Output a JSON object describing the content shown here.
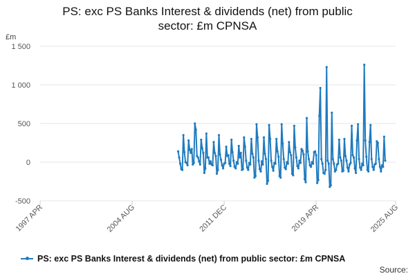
{
  "chart_data": {
    "type": "line",
    "title_lines": [
      "PS: exc PS Banks Interest & dividends (net) from public",
      "sector: £m CPNSA"
    ],
    "unit_label": "£m",
    "ylim": [
      -500,
      1500
    ],
    "y_ticks": [
      -500,
      0,
      500,
      1000,
      1500
    ],
    "y_tick_labels": [
      "-500",
      "0",
      "500",
      "1 000",
      "1 500"
    ],
    "xlim": [
      "1997-04",
      "2025-08"
    ],
    "x_ticks": [
      "1997-04",
      "2004-08",
      "2011-12",
      "2019-04",
      "2025-08"
    ],
    "x_tick_labels": [
      "1997 APR",
      "2004 AUG",
      "2011 DEC",
      "2019 APR",
      "2025 AUG"
    ],
    "grid": true,
    "legend_position": "bottom",
    "series": [
      {
        "name": "PS: exc PS Banks Interest & dividends (net) from public sector: £m CPNSA",
        "color": "#1f7bbf",
        "points": [
          [
            "2008-04",
            140
          ],
          [
            "2008-05",
            60
          ],
          [
            "2008-06",
            -20
          ],
          [
            "2008-07",
            -90
          ],
          [
            "2008-08",
            -100
          ],
          [
            "2008-09",
            350
          ],
          [
            "2008-10",
            130
          ],
          [
            "2008-11",
            0
          ],
          [
            "2008-12",
            -10
          ],
          [
            "2009-01",
            -40
          ],
          [
            "2009-02",
            280
          ],
          [
            "2009-03",
            160
          ],
          [
            "2009-04",
            120
          ],
          [
            "2009-05",
            170
          ],
          [
            "2009-06",
            -30
          ],
          [
            "2009-07",
            -10
          ],
          [
            "2009-08",
            500
          ],
          [
            "2009-09",
            420
          ],
          [
            "2009-10",
            80
          ],
          [
            "2009-11",
            60
          ],
          [
            "2009-12",
            10
          ],
          [
            "2010-01",
            -30
          ],
          [
            "2010-02",
            290
          ],
          [
            "2010-03",
            180
          ],
          [
            "2010-04",
            120
          ],
          [
            "2010-05",
            -140
          ],
          [
            "2010-06",
            -80
          ],
          [
            "2010-07",
            370
          ],
          [
            "2010-08",
            60
          ],
          [
            "2010-09",
            60
          ],
          [
            "2010-10",
            -20
          ],
          [
            "2010-11",
            10
          ],
          [
            "2010-12",
            -30
          ],
          [
            "2011-01",
            -40
          ],
          [
            "2011-02",
            260
          ],
          [
            "2011-03",
            120
          ],
          [
            "2011-04",
            80
          ],
          [
            "2011-05",
            -150
          ],
          [
            "2011-06",
            -100
          ],
          [
            "2011-07",
            350
          ],
          [
            "2011-08",
            100
          ],
          [
            "2011-09",
            30
          ],
          [
            "2011-10",
            -40
          ],
          [
            "2011-11",
            -80
          ],
          [
            "2011-12",
            -20
          ],
          [
            "2012-01",
            -10
          ],
          [
            "2012-02",
            200
          ],
          [
            "2012-03",
            80
          ],
          [
            "2012-04",
            90
          ],
          [
            "2012-05",
            -20
          ],
          [
            "2012-06",
            -50
          ],
          [
            "2012-07",
            290
          ],
          [
            "2012-08",
            130
          ],
          [
            "2012-09",
            20
          ],
          [
            "2012-10",
            -60
          ],
          [
            "2012-11",
            -80
          ],
          [
            "2012-12",
            0
          ],
          [
            "2013-01",
            -20
          ],
          [
            "2013-02",
            210
          ],
          [
            "2013-03",
            60
          ],
          [
            "2013-04",
            120
          ],
          [
            "2013-05",
            -100
          ],
          [
            "2013-06",
            -90
          ],
          [
            "2013-07",
            320
          ],
          [
            "2013-08",
            200
          ],
          [
            "2013-09",
            20
          ],
          [
            "2013-10",
            -70
          ],
          [
            "2013-11",
            -100
          ],
          [
            "2013-12",
            -10
          ],
          [
            "2014-01",
            -30
          ],
          [
            "2014-02",
            300
          ],
          [
            "2014-03",
            110
          ],
          [
            "2014-04",
            60
          ],
          [
            "2014-05",
            -200
          ],
          [
            "2014-06",
            -180
          ],
          [
            "2014-07",
            490
          ],
          [
            "2014-08",
            320
          ],
          [
            "2014-09",
            20
          ],
          [
            "2014-10",
            -90
          ],
          [
            "2014-11",
            -120
          ],
          [
            "2014-12",
            10
          ],
          [
            "2015-01",
            -30
          ],
          [
            "2015-02",
            320
          ],
          [
            "2015-03",
            110
          ],
          [
            "2015-04",
            40
          ],
          [
            "2015-05",
            -280
          ],
          [
            "2015-06",
            -240
          ],
          [
            "2015-07",
            480
          ],
          [
            "2015-08",
            300
          ],
          [
            "2015-09",
            20
          ],
          [
            "2015-10",
            -60
          ],
          [
            "2015-11",
            -110
          ],
          [
            "2015-12",
            -10
          ],
          [
            "2016-01",
            -20
          ],
          [
            "2016-02",
            300
          ],
          [
            "2016-03",
            140
          ],
          [
            "2016-04",
            70
          ],
          [
            "2016-05",
            -180
          ],
          [
            "2016-06",
            -200
          ],
          [
            "2016-07",
            490
          ],
          [
            "2016-08",
            240
          ],
          [
            "2016-09",
            40
          ],
          [
            "2016-10",
            -70
          ],
          [
            "2016-11",
            -90
          ],
          [
            "2016-12",
            0
          ],
          [
            "2017-01",
            -20
          ],
          [
            "2017-02",
            260
          ],
          [
            "2017-03",
            130
          ],
          [
            "2017-04",
            90
          ],
          [
            "2017-05",
            -150
          ],
          [
            "2017-06",
            -170
          ],
          [
            "2017-07",
            470
          ],
          [
            "2017-08",
            190
          ],
          [
            "2017-09",
            60
          ],
          [
            "2017-10",
            -50
          ],
          [
            "2017-11",
            -80
          ],
          [
            "2017-12",
            20
          ],
          [
            "2018-01",
            -10
          ],
          [
            "2018-02",
            170
          ],
          [
            "2018-03",
            150
          ],
          [
            "2018-04",
            100
          ],
          [
            "2018-05",
            -220
          ],
          [
            "2018-06",
            -260
          ],
          [
            "2018-07",
            570
          ],
          [
            "2018-08",
            140
          ],
          [
            "2018-09",
            40
          ],
          [
            "2018-10",
            -40
          ],
          [
            "2018-11",
            -60
          ],
          [
            "2018-12",
            0
          ],
          [
            "2019-01",
            -20
          ],
          [
            "2019-02",
            130
          ],
          [
            "2019-03",
            140
          ],
          [
            "2019-04",
            90
          ],
          [
            "2019-05",
            -270
          ],
          [
            "2019-06",
            -230
          ],
          [
            "2019-07",
            600
          ],
          [
            "2019-08",
            960
          ],
          [
            "2019-09",
            40
          ],
          [
            "2019-10",
            -20
          ],
          [
            "2019-11",
            -140
          ],
          [
            "2019-12",
            -150
          ],
          [
            "2020-01",
            -100
          ],
          [
            "2020-02",
            1230
          ],
          [
            "2020-03",
            20
          ],
          [
            "2020-04",
            -20
          ],
          [
            "2020-05",
            -320
          ],
          [
            "2020-06",
            -300
          ],
          [
            "2020-07",
            640
          ],
          [
            "2020-08",
            40
          ],
          [
            "2020-09",
            -20
          ],
          [
            "2020-10",
            -120
          ],
          [
            "2020-11",
            -100
          ],
          [
            "2020-12",
            -30
          ],
          [
            "2021-01",
            -20
          ],
          [
            "2021-02",
            290
          ],
          [
            "2021-03",
            60
          ],
          [
            "2021-04",
            20
          ],
          [
            "2021-05",
            -120
          ],
          [
            "2021-06",
            -110
          ],
          [
            "2021-07",
            300
          ],
          [
            "2021-08",
            80
          ],
          [
            "2021-09",
            20
          ],
          [
            "2021-10",
            -70
          ],
          [
            "2021-11",
            -120
          ],
          [
            "2021-12",
            -30
          ],
          [
            "2022-01",
            -10
          ],
          [
            "2022-02",
            470
          ],
          [
            "2022-03",
            90
          ],
          [
            "2022-04",
            60
          ],
          [
            "2022-05",
            -80
          ],
          [
            "2022-06",
            -140
          ],
          [
            "2022-07",
            280
          ],
          [
            "2022-08",
            490
          ],
          [
            "2022-09",
            40
          ],
          [
            "2022-10",
            -70
          ],
          [
            "2022-11",
            -100
          ],
          [
            "2022-12",
            -20
          ],
          [
            "2023-01",
            -40
          ],
          [
            "2023-02",
            1260
          ],
          [
            "2023-03",
            280
          ],
          [
            "2023-04",
            70
          ],
          [
            "2023-05",
            -100
          ],
          [
            "2023-06",
            -120
          ],
          [
            "2023-07",
            260
          ],
          [
            "2023-08",
            480
          ],
          [
            "2023-09",
            40
          ],
          [
            "2023-10",
            -60
          ],
          [
            "2023-11",
            -100
          ],
          [
            "2023-12",
            -30
          ],
          [
            "2024-01",
            -20
          ],
          [
            "2024-02",
            270
          ],
          [
            "2024-03",
            250
          ],
          [
            "2024-04",
            40
          ],
          [
            "2024-05",
            -60
          ],
          [
            "2024-06",
            -120
          ],
          [
            "2024-07",
            -40
          ],
          [
            "2024-08",
            -60
          ],
          [
            "2024-09",
            330
          ],
          [
            "2024-10",
            20
          ]
        ]
      }
    ]
  },
  "source_label": "Source:"
}
